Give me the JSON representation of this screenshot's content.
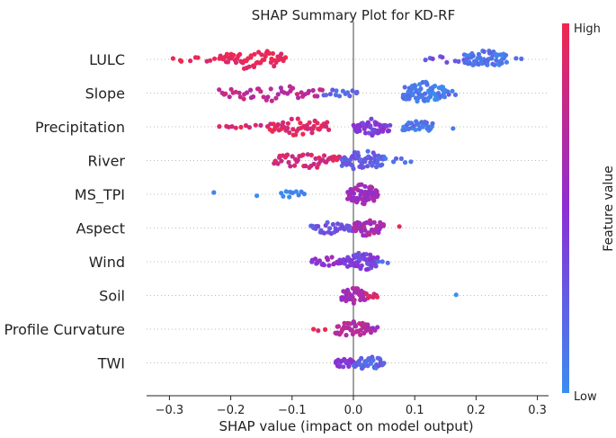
{
  "chart_data": {
    "type": "scatter",
    "subtype": "shap-beeswarm",
    "title": "SHAP Summary Plot for KD-RF",
    "xlabel": "SHAP value (impact on model output)",
    "ylabel": "",
    "xlim": [
      -0.34,
      0.31
    ],
    "xticks": [
      -0.3,
      -0.2,
      -0.1,
      0.0,
      0.1,
      0.2,
      0.3
    ],
    "xtick_labels": [
      "−0.3",
      "−0.2",
      "−0.1",
      "0.0",
      "0.1",
      "0.2",
      "0.3"
    ],
    "colorbar": {
      "label": "Feature value",
      "high_label": "High",
      "low_label": "Low",
      "low_color": "#3b8cf0",
      "mid_color": "#8b2fd4",
      "high_color": "#f0284f"
    },
    "features": [
      {
        "name": "LULC",
        "clusters": [
          {
            "from": -0.3,
            "to": -0.22,
            "n": 9,
            "f": 0.95
          },
          {
            "from": -0.22,
            "to": -0.11,
            "n": 60,
            "f": 0.96
          },
          {
            "from": 0.11,
            "to": 0.19,
            "n": 10,
            "f": 0.3
          },
          {
            "from": 0.18,
            "to": 0.25,
            "n": 55,
            "f": 0.12
          },
          {
            "from": 0.265,
            "to": 0.275,
            "n": 2,
            "f": 0.05
          }
        ]
      },
      {
        "name": "Slope",
        "clusters": [
          {
            "from": -0.22,
            "to": -0.05,
            "n": 45,
            "f": 0.75
          },
          {
            "from": -0.05,
            "to": 0.01,
            "n": 14,
            "f": 0.2
          },
          {
            "from": 0.08,
            "to": 0.15,
            "n": 70,
            "f": 0.08
          },
          {
            "from": 0.15,
            "to": 0.17,
            "n": 4,
            "f": 0.15
          }
        ]
      },
      {
        "name": "Precipitation",
        "clusters": [
          {
            "from": -0.22,
            "to": -0.15,
            "n": 10,
            "f": 0.85
          },
          {
            "from": -0.14,
            "to": -0.04,
            "n": 48,
            "f": 0.92
          },
          {
            "from": 0.0,
            "to": 0.06,
            "n": 50,
            "f": 0.45
          },
          {
            "from": 0.08,
            "to": 0.13,
            "n": 30,
            "f": 0.1
          },
          {
            "from": 0.16,
            "to": 0.165,
            "n": 1,
            "f": 0.05
          }
        ]
      },
      {
        "name": "River",
        "clusters": [
          {
            "from": -0.13,
            "to": -0.02,
            "n": 45,
            "f": 0.85
          },
          {
            "from": -0.02,
            "to": 0.05,
            "n": 60,
            "f": 0.25
          },
          {
            "from": 0.05,
            "to": 0.1,
            "n": 6,
            "f": 0.15
          }
        ]
      },
      {
        "name": "MS_TPI",
        "clusters": [
          {
            "from": -0.23,
            "to": -0.225,
            "n": 1,
            "f": 0.0
          },
          {
            "from": -0.16,
            "to": -0.155,
            "n": 1,
            "f": 0.0
          },
          {
            "from": -0.12,
            "to": -0.08,
            "n": 10,
            "f": 0.0
          },
          {
            "from": -0.01,
            "to": 0.04,
            "n": 60,
            "f": 0.6
          }
        ]
      },
      {
        "name": "Aspect",
        "clusters": [
          {
            "from": -0.07,
            "to": 0.0,
            "n": 30,
            "f": 0.3
          },
          {
            "from": 0.0,
            "to": 0.05,
            "n": 50,
            "f": 0.65
          },
          {
            "from": 0.07,
            "to": 0.08,
            "n": 1,
            "f": 0.95
          }
        ]
      },
      {
        "name": "Wind",
        "clusters": [
          {
            "from": -0.07,
            "to": -0.01,
            "n": 22,
            "f": 0.5
          },
          {
            "from": -0.01,
            "to": 0.04,
            "n": 55,
            "f": 0.4
          },
          {
            "from": 0.04,
            "to": 0.06,
            "n": 3,
            "f": 0.1
          }
        ]
      },
      {
        "name": "Soil",
        "clusters": [
          {
            "from": -0.02,
            "to": 0.02,
            "n": 45,
            "f": 0.62
          },
          {
            "from": 0.02,
            "to": 0.04,
            "n": 8,
            "f": 0.9
          },
          {
            "from": 0.165,
            "to": 0.17,
            "n": 1,
            "f": 0.0
          }
        ]
      },
      {
        "name": "Profile Curvature",
        "clusters": [
          {
            "from": -0.07,
            "to": -0.04,
            "n": 3,
            "f": 0.95
          },
          {
            "from": -0.03,
            "to": 0.03,
            "n": 45,
            "f": 0.7
          },
          {
            "from": 0.03,
            "to": 0.04,
            "n": 3,
            "f": 0.5
          }
        ]
      },
      {
        "name": "TWI",
        "clusters": [
          {
            "from": -0.03,
            "to": 0.0,
            "n": 20,
            "f": 0.45
          },
          {
            "from": 0.0,
            "to": 0.05,
            "n": 35,
            "f": 0.2
          }
        ]
      }
    ]
  }
}
